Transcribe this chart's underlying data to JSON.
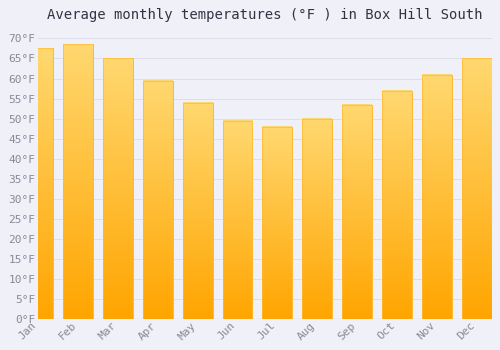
{
  "title": "Average monthly temperatures (°F ) in Box Hill South",
  "months": [
    "Jan",
    "Feb",
    "Mar",
    "Apr",
    "May",
    "Jun",
    "Jul",
    "Aug",
    "Sep",
    "Oct",
    "Nov",
    "Dec"
  ],
  "values": [
    67.5,
    68.5,
    65.0,
    59.5,
    54.0,
    49.5,
    48.0,
    50.0,
    53.5,
    57.0,
    61.0,
    65.0
  ],
  "bar_color_bottom": "#FFA500",
  "bar_color_top": "#FFD870",
  "bar_edge_color": "#FFB830",
  "background_color": "#F0F0F8",
  "plot_bg_color": "#F0F0F8",
  "grid_color": "#DDDDEE",
  "ylim": [
    0,
    72
  ],
  "yticks": [
    0,
    5,
    10,
    15,
    20,
    25,
    30,
    35,
    40,
    45,
    50,
    55,
    60,
    65,
    70
  ],
  "title_fontsize": 10,
  "tick_fontsize": 8,
  "tick_color": "#888899",
  "title_color": "#333344",
  "figsize": [
    5.0,
    3.5
  ],
  "dpi": 100
}
